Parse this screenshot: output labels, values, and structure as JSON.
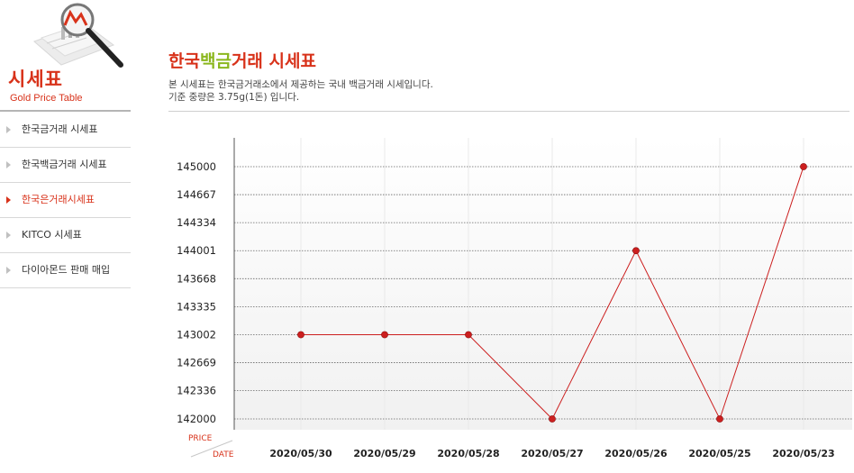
{
  "sidebar": {
    "title": "시세표",
    "subtitle": "Gold Price Table",
    "items": [
      {
        "label": "한국금거래 시세표",
        "active": false
      },
      {
        "label": "한국백금거래 시세표",
        "active": false
      },
      {
        "label": "한국은거래시세표",
        "active": true
      },
      {
        "label": "KITCO 시세표",
        "active": false
      },
      {
        "label": "다이아몬드 판매 매입",
        "active": false
      }
    ]
  },
  "header": {
    "title_part1": "한국",
    "title_highlight": "백금",
    "title_part2": "거래 시세표",
    "desc_line1": "본 시세표는 한국금거래소에서 제공하는 국내 백금거래 시세입니다.",
    "desc_line2": "기준 중량은 3.75g(1돈) 입니다."
  },
  "chart_data": {
    "type": "line",
    "categories": [
      "2020/05/30",
      "2020/05/29",
      "2020/05/28",
      "2020/05/27",
      "2020/05/26",
      "2020/05/25",
      "2020/05/23"
    ],
    "values": [
      143002,
      143002,
      143002,
      142000,
      144001,
      142000,
      145000
    ],
    "yticks": [
      145000,
      144667,
      144334,
      144001,
      143668,
      143335,
      143002,
      142669,
      142336,
      142000
    ],
    "ylim": [
      142000,
      145000
    ],
    "ylabel": "PRICE",
    "xlabel": "DATE",
    "line_color": "#cc1f1f",
    "grid": true
  }
}
